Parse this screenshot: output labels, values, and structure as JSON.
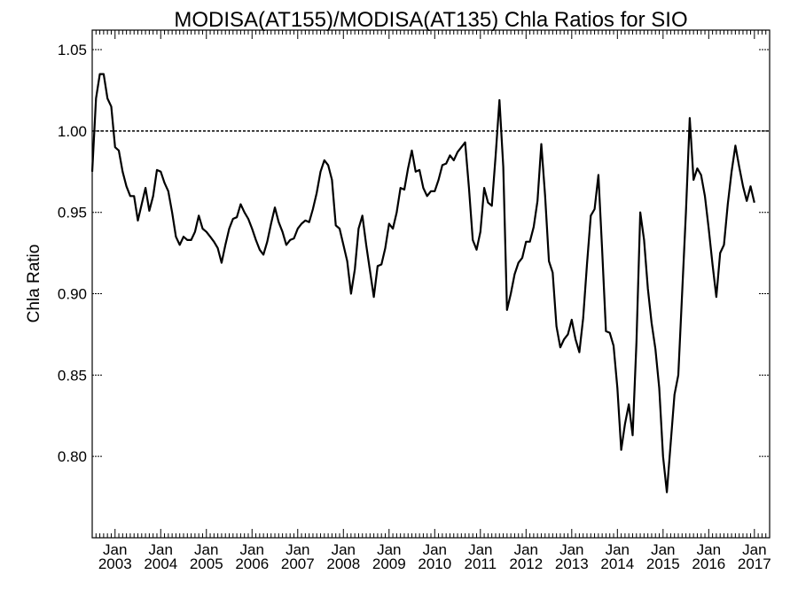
{
  "chart_data": {
    "type": "line",
    "title": "MODISA(AT155)/MODISA(AT135)  Chla Ratios for SIO",
    "xlabel": "",
    "ylabel": "Chla Ratio",
    "xlim": [
      "2002-07-01",
      "2017-05-01"
    ],
    "ylim": [
      0.75,
      1.062
    ],
    "y_ticks": [
      "0.80",
      "0.85",
      "0.90",
      "0.95",
      "1.00",
      "1.05"
    ],
    "x_ticks": [
      {
        "date": "2003-01",
        "month": "Jan",
        "year": "2003"
      },
      {
        "date": "2004-01",
        "month": "Jan",
        "year": "2004"
      },
      {
        "date": "2005-01",
        "month": "Jan",
        "year": "2005"
      },
      {
        "date": "2006-01",
        "month": "Jan",
        "year": "2006"
      },
      {
        "date": "2007-01",
        "month": "Jan",
        "year": "2007"
      },
      {
        "date": "2008-01",
        "month": "Jan",
        "year": "2008"
      },
      {
        "date": "2009-01",
        "month": "Jan",
        "year": "2009"
      },
      {
        "date": "2010-01",
        "month": "Jan",
        "year": "2010"
      },
      {
        "date": "2011-01",
        "month": "Jan",
        "year": "2011"
      },
      {
        "date": "2012-01",
        "month": "Jan",
        "year": "2012"
      },
      {
        "date": "2013-01",
        "month": "Jan",
        "year": "2013"
      },
      {
        "date": "2014-01",
        "month": "Jan",
        "year": "2014"
      },
      {
        "date": "2015-01",
        "month": "Jan",
        "year": "2015"
      },
      {
        "date": "2016-01",
        "month": "Jan",
        "year": "2016"
      },
      {
        "date": "2017-01",
        "month": "Jan",
        "year": "2017"
      }
    ],
    "reference_line": {
      "y": 1.0,
      "style": "dotted"
    },
    "grid": false,
    "legend": "none",
    "series": [
      {
        "color": "#000000",
        "points": [
          [
            "2002-07",
            0.975
          ],
          [
            "2002-08",
            1.02
          ],
          [
            "2002-09",
            1.035
          ],
          [
            "2002-10",
            1.035
          ],
          [
            "2002-11",
            1.02
          ],
          [
            "2002-12",
            1.015
          ],
          [
            "2003-01",
            0.99
          ],
          [
            "2003-02",
            0.988
          ],
          [
            "2003-03",
            0.975
          ],
          [
            "2003-04",
            0.966
          ],
          [
            "2003-05",
            0.96
          ],
          [
            "2003-06",
            0.96
          ],
          [
            "2003-07",
            0.945
          ],
          [
            "2003-08",
            0.955
          ],
          [
            "2003-09",
            0.965
          ],
          [
            "2003-10",
            0.951
          ],
          [
            "2003-11",
            0.96
          ],
          [
            "2003-12",
            0.976
          ],
          [
            "2004-01",
            0.975
          ],
          [
            "2004-02",
            0.968
          ],
          [
            "2004-03",
            0.963
          ],
          [
            "2004-04",
            0.95
          ],
          [
            "2004-05",
            0.935
          ],
          [
            "2004-06",
            0.93
          ],
          [
            "2004-07",
            0.935
          ],
          [
            "2004-08",
            0.933
          ],
          [
            "2004-09",
            0.933
          ],
          [
            "2004-10",
            0.938
          ],
          [
            "2004-11",
            0.948
          ],
          [
            "2004-12",
            0.94
          ],
          [
            "2005-01",
            0.938
          ],
          [
            "2005-02",
            0.935
          ],
          [
            "2005-03",
            0.932
          ],
          [
            "2005-04",
            0.928
          ],
          [
            "2005-05",
            0.919
          ],
          [
            "2005-06",
            0.93
          ],
          [
            "2005-07",
            0.94
          ],
          [
            "2005-08",
            0.946
          ],
          [
            "2005-09",
            0.947
          ],
          [
            "2005-10",
            0.955
          ],
          [
            "2005-11",
            0.95
          ],
          [
            "2005-12",
            0.946
          ],
          [
            "2006-01",
            0.94
          ],
          [
            "2006-02",
            0.933
          ],
          [
            "2006-03",
            0.927
          ],
          [
            "2006-04",
            0.924
          ],
          [
            "2006-05",
            0.932
          ],
          [
            "2006-06",
            0.943
          ],
          [
            "2006-07",
            0.953
          ],
          [
            "2006-08",
            0.944
          ],
          [
            "2006-09",
            0.938
          ],
          [
            "2006-10",
            0.93
          ],
          [
            "2006-11",
            0.933
          ],
          [
            "2006-12",
            0.934
          ],
          [
            "2007-01",
            0.94
          ],
          [
            "2007-02",
            0.943
          ],
          [
            "2007-03",
            0.945
          ],
          [
            "2007-04",
            0.944
          ],
          [
            "2007-05",
            0.952
          ],
          [
            "2007-06",
            0.962
          ],
          [
            "2007-07",
            0.975
          ],
          [
            "2007-08",
            0.982
          ],
          [
            "2007-09",
            0.979
          ],
          [
            "2007-10",
            0.97
          ],
          [
            "2007-11",
            0.942
          ],
          [
            "2007-12",
            0.94
          ],
          [
            "2008-01",
            0.93
          ],
          [
            "2008-02",
            0.92
          ],
          [
            "2008-03",
            0.9
          ],
          [
            "2008-04",
            0.915
          ],
          [
            "2008-05",
            0.94
          ],
          [
            "2008-06",
            0.948
          ],
          [
            "2008-07",
            0.93
          ],
          [
            "2008-08",
            0.914
          ],
          [
            "2008-09",
            0.898
          ],
          [
            "2008-10",
            0.917
          ],
          [
            "2008-11",
            0.918
          ],
          [
            "2008-12",
            0.928
          ],
          [
            "2009-01",
            0.943
          ],
          [
            "2009-02",
            0.94
          ],
          [
            "2009-03",
            0.95
          ],
          [
            "2009-04",
            0.965
          ],
          [
            "2009-05",
            0.964
          ],
          [
            "2009-06",
            0.977
          ],
          [
            "2009-07",
            0.988
          ],
          [
            "2009-08",
            0.975
          ],
          [
            "2009-09",
            0.976
          ],
          [
            "2009-10",
            0.965
          ],
          [
            "2009-11",
            0.96
          ],
          [
            "2009-12",
            0.963
          ],
          [
            "2010-01",
            0.963
          ],
          [
            "2010-02",
            0.97
          ],
          [
            "2010-03",
            0.979
          ],
          [
            "2010-04",
            0.98
          ],
          [
            "2010-05",
            0.985
          ],
          [
            "2010-06",
            0.982
          ],
          [
            "2010-07",
            0.987
          ],
          [
            "2010-08",
            0.99
          ],
          [
            "2010-09",
            0.993
          ],
          [
            "2010-10",
            0.965
          ],
          [
            "2010-11",
            0.933
          ],
          [
            "2010-12",
            0.927
          ],
          [
            "2011-01",
            0.938
          ],
          [
            "2011-02",
            0.965
          ],
          [
            "2011-03",
            0.956
          ],
          [
            "2011-04",
            0.954
          ],
          [
            "2011-05",
            0.985
          ],
          [
            "2011-06",
            1.019
          ],
          [
            "2011-07",
            0.978
          ],
          [
            "2011-08",
            0.89
          ],
          [
            "2011-09",
            0.9
          ],
          [
            "2011-10",
            0.912
          ],
          [
            "2011-11",
            0.919
          ],
          [
            "2011-12",
            0.922
          ],
          [
            "2012-01",
            0.932
          ],
          [
            "2012-02",
            0.932
          ],
          [
            "2012-03",
            0.941
          ],
          [
            "2012-04",
            0.957
          ],
          [
            "2012-05",
            0.992
          ],
          [
            "2012-06",
            0.96
          ],
          [
            "2012-07",
            0.92
          ],
          [
            "2012-08",
            0.913
          ],
          [
            "2012-09",
            0.88
          ],
          [
            "2012-10",
            0.867
          ],
          [
            "2012-11",
            0.872
          ],
          [
            "2012-12",
            0.875
          ],
          [
            "2013-01",
            0.884
          ],
          [
            "2013-02",
            0.872
          ],
          [
            "2013-03",
            0.864
          ],
          [
            "2013-04",
            0.885
          ],
          [
            "2013-05",
            0.918
          ],
          [
            "2013-06",
            0.948
          ],
          [
            "2013-07",
            0.952
          ],
          [
            "2013-08",
            0.973
          ],
          [
            "2013-09",
            0.927
          ],
          [
            "2013-10",
            0.877
          ],
          [
            "2013-11",
            0.876
          ],
          [
            "2013-12",
            0.868
          ],
          [
            "2014-01",
            0.842
          ],
          [
            "2014-02",
            0.804
          ],
          [
            "2014-03",
            0.82
          ],
          [
            "2014-04",
            0.832
          ],
          [
            "2014-05",
            0.813
          ],
          [
            "2014-06",
            0.87
          ],
          [
            "2014-07",
            0.95
          ],
          [
            "2014-08",
            0.933
          ],
          [
            "2014-09",
            0.903
          ],
          [
            "2014-10",
            0.882
          ],
          [
            "2014-11",
            0.866
          ],
          [
            "2014-12",
            0.842
          ],
          [
            "2015-01",
            0.8
          ],
          [
            "2015-02",
            0.778
          ],
          [
            "2015-03",
            0.808
          ],
          [
            "2015-04",
            0.838
          ],
          [
            "2015-05",
            0.85
          ],
          [
            "2015-06",
            0.9
          ],
          [
            "2015-07",
            0.95
          ],
          [
            "2015-08",
            1.008
          ],
          [
            "2015-09",
            0.97
          ],
          [
            "2015-10",
            0.977
          ],
          [
            "2015-11",
            0.973
          ],
          [
            "2015-12",
            0.96
          ],
          [
            "2016-01",
            0.94
          ],
          [
            "2016-02",
            0.918
          ],
          [
            "2016-03",
            0.898
          ],
          [
            "2016-04",
            0.925
          ],
          [
            "2016-05",
            0.93
          ],
          [
            "2016-06",
            0.955
          ],
          [
            "2016-07",
            0.975
          ],
          [
            "2016-08",
            0.991
          ],
          [
            "2016-09",
            0.978
          ],
          [
            "2016-10",
            0.966
          ],
          [
            "2016-11",
            0.957
          ],
          [
            "2016-12",
            0.966
          ],
          [
            "2017-01",
            0.956
          ]
        ]
      }
    ]
  }
}
